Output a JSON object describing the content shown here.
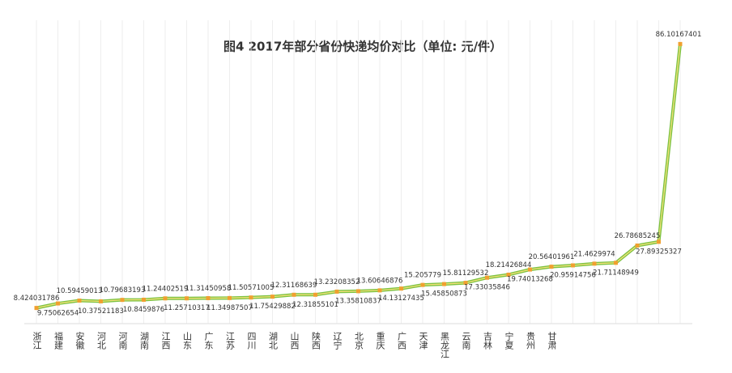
{
  "chart_data": {
    "type": "line",
    "title": "图4  2017年部分省份快递均价对比（单位: 元/件）",
    "categories": [
      "浙江",
      "福建",
      "安徽",
      "河北",
      "河南",
      "湖南",
      "江西",
      "山东",
      "广东",
      "江苏",
      "四川",
      "湖北",
      "山西",
      "陕西",
      "辽宁",
      "北京",
      "重庆",
      "广西",
      "天津",
      "黑龙江",
      "云南",
      "吉林",
      "宁夏",
      "贵州",
      "甘肃",
      null,
      null,
      null,
      null,
      null,
      null
    ],
    "values": [
      8.424031786,
      9.75062654,
      10.59459013,
      10.37521183,
      10.79683193,
      10.8459876,
      11.24402519,
      11.25710317,
      11.31450958,
      11.34987507,
      11.50571005,
      11.75429882,
      12.31168639,
      12.31855101,
      13.23208352,
      13.35810837,
      13.60646876,
      14.13127435,
      15.205779,
      15.45850873,
      15.81129532,
      17.33035846,
      18.21426844,
      19.74013268,
      20.56401961,
      20.95914756,
      21.4629974,
      21.71148949,
      26.78685245,
      27.89325327,
      86.10167401
    ],
    "color": "#7cc242",
    "marker_color": "#f0a030",
    "ylim": [
      5,
      90
    ]
  }
}
